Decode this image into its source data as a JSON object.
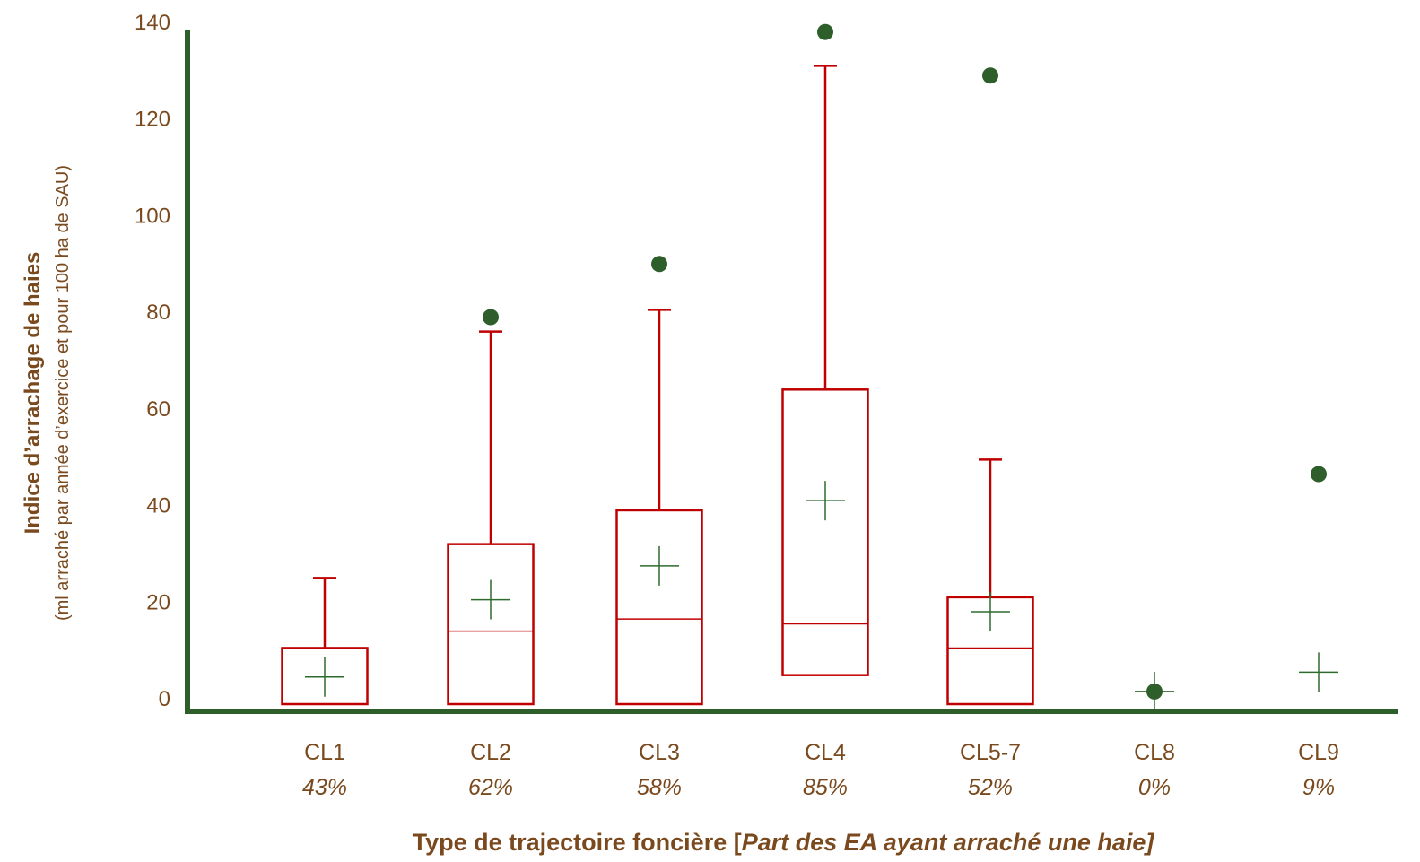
{
  "chart_data": {
    "type": "box",
    "ylim": [
      0,
      140
    ],
    "yticks": [
      0,
      20,
      40,
      60,
      80,
      100,
      120,
      140
    ],
    "ylabel": "Indice d’arrachage de haies",
    "ylabel_sub": "(ml arraché par année d’exercice et pour 100 ha de SAU)",
    "xlabel": "Type de trajectoire foncière [",
    "xlabel_italic": "Part des EA ayant arraché une haie]",
    "grid": false,
    "colors": {
      "box": "#c00000",
      "mean": "#2e6b2e",
      "outlier": "#2e5e2a",
      "axis": "#2e5e2a"
    },
    "categories": [
      {
        "name": "CL1",
        "share": "43%",
        "q1": 0,
        "median": 0,
        "q3": 10.5,
        "whisker_low": 0,
        "whisker_high": 25,
        "mean": 4.5,
        "outliers": []
      },
      {
        "name": "CL2",
        "share": "62%",
        "q1": 0,
        "median": 14,
        "q3": 32,
        "whisker_low": 0,
        "whisker_high": 76,
        "mean": 20.5,
        "outliers": [
          79
        ]
      },
      {
        "name": "CL3",
        "share": "58%",
        "q1": 0,
        "median": 16.5,
        "q3": 39,
        "whisker_low": 0,
        "whisker_high": 80.5,
        "mean": 27.5,
        "outliers": [
          90
        ]
      },
      {
        "name": "CL4",
        "share": "85%",
        "q1": 6,
        "median": 15.5,
        "q3": 64,
        "whisker_low": 6,
        "whisker_high": 131,
        "mean": 41,
        "outliers": [
          138
        ]
      },
      {
        "name": "CL5-7",
        "share": "52%",
        "q1": 0,
        "median": 10.5,
        "q3": 21,
        "whisker_low": 0,
        "whisker_high": 49.5,
        "mean": 18,
        "outliers": [
          129
        ]
      },
      {
        "name": "CL8",
        "share": "0%",
        "q1": null,
        "median": null,
        "q3": null,
        "whisker_low": null,
        "whisker_high": null,
        "mean": 1.5,
        "outliers": [
          1.5
        ]
      },
      {
        "name": "CL9",
        "share": "9%",
        "q1": null,
        "median": null,
        "q3": null,
        "whisker_low": null,
        "whisker_high": null,
        "mean": 5.5,
        "outliers": [
          46.5
        ]
      }
    ]
  }
}
